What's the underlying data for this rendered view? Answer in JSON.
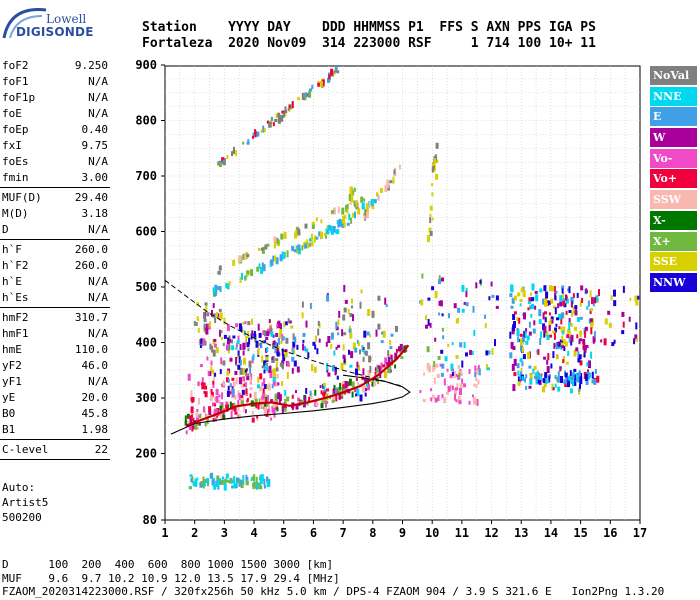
{
  "logo": {
    "line1": "Lowell",
    "line2": "DIGISONDE"
  },
  "header": {
    "line1": "Station    YYYY DAY    DDD HHMMSS P1  FFS S AXN PPS IGA PS",
    "line2": "Fortaleza  2020 Nov09  314 223000 RSF     1 714 100 10+ 11"
  },
  "parameters": [
    [
      {
        "label": "foF2",
        "value": "9.250"
      },
      {
        "label": "foF1",
        "value": "N/A"
      },
      {
        "label": "foF1p",
        "value": "N/A"
      },
      {
        "label": "foE",
        "value": "N/A"
      },
      {
        "label": "foEp",
        "value": "0.40"
      },
      {
        "label": "fxI",
        "value": "9.75"
      },
      {
        "label": "foEs",
        "value": "N/A"
      },
      {
        "label": "fmin",
        "value": "3.00"
      }
    ],
    [
      {
        "label": "MUF(D)",
        "value": "29.40"
      },
      {
        "label": "M(D)",
        "value": "3.18"
      },
      {
        "label": "D",
        "value": "N/A"
      }
    ],
    [
      {
        "label": "h`F",
        "value": "260.0"
      },
      {
        "label": "h`F2",
        "value": "260.0"
      },
      {
        "label": "h`E",
        "value": "N/A"
      },
      {
        "label": "h`Es",
        "value": "N/A"
      }
    ],
    [
      {
        "label": "hmF2",
        "value": "310.7"
      },
      {
        "label": "hmF1",
        "value": "N/A"
      },
      {
        "label": "hmE",
        "value": "110.0"
      },
      {
        "label": "yF2",
        "value": "46.0"
      },
      {
        "label": "yF1",
        "value": "N/A"
      },
      {
        "label": "yE",
        "value": "20.0"
      },
      {
        "label": "B0",
        "value": "45.8"
      },
      {
        "label": "B1",
        "value": "1.98"
      }
    ],
    [
      {
        "label": "C-level",
        "value": "22"
      }
    ]
  ],
  "autoscaling": {
    "line1": "Auto:",
    "line2": "Artist5",
    "line3": "500200"
  },
  "footer": {
    "line1": "D      100  200  400  600  800 1000 1500 3000 [km]",
    "line2": "MUF    9.6  9.7 10.2 10.9 12.0 13.5 17.9 29.4 [MHz]",
    "line3": "FZAOM_2020314223000.RSF / 320fx256h 50 kHz 5.0 km / DPS-4 FZAOM 904 / 3.9 S 321.6 E   Ion2Png 1.3.20"
  },
  "legend": [
    {
      "label": "NoVal",
      "color": "#7f7f7f"
    },
    {
      "label": "NNE",
      "color": "#00d8f0"
    },
    {
      "label": "E",
      "color": "#3fa0e8"
    },
    {
      "label": "W",
      "color": "#a8009a"
    },
    {
      "label": "Vo-",
      "color": "#f04ac8"
    },
    {
      "label": "Vo+",
      "color": "#f0003c"
    },
    {
      "label": "SSW",
      "color": "#f8b8b0"
    },
    {
      "label": "X-",
      "color": "#007800"
    },
    {
      "label": "X+",
      "color": "#70b840"
    },
    {
      "label": "SSE",
      "color": "#d8d000"
    },
    {
      "label": "NNW",
      "color": "#1800d8"
    }
  ],
  "chart_data": {
    "type": "scatter",
    "x_ticks": [
      "1",
      "2",
      "3",
      "4",
      "5",
      "6",
      "7",
      "8",
      "9",
      "10",
      "11",
      "12",
      "13",
      "14",
      "15",
      "16",
      "17"
    ],
    "y_ticks": [
      "80",
      "200",
      "300",
      "400",
      "500",
      "600",
      "700",
      "800",
      "900"
    ],
    "xlim": [
      1,
      17
    ],
    "ylim": [
      80,
      900
    ],
    "grid": true,
    "trace": [
      {
        "x": 1.7,
        "y": 250
      },
      {
        "x": 2.2,
        "y": 260
      },
      {
        "x": 2.8,
        "y": 272
      },
      {
        "x": 3.4,
        "y": 285
      },
      {
        "x": 4.0,
        "y": 290
      },
      {
        "x": 4.6,
        "y": 292
      },
      {
        "x": 5.2,
        "y": 286
      },
      {
        "x": 5.8,
        "y": 292
      },
      {
        "x": 6.4,
        "y": 300
      },
      {
        "x": 7.0,
        "y": 310
      },
      {
        "x": 7.6,
        "y": 322
      },
      {
        "x": 8.2,
        "y": 342
      },
      {
        "x": 8.8,
        "y": 370
      },
      {
        "x": 9.2,
        "y": 395
      }
    ],
    "profile": [
      {
        "x": 1.2,
        "y": 235
      },
      {
        "x": 2.0,
        "y": 254
      },
      {
        "x": 3.0,
        "y": 262
      },
      {
        "x": 4.0,
        "y": 268
      },
      {
        "x": 5.0,
        "y": 272
      },
      {
        "x": 6.0,
        "y": 277
      },
      {
        "x": 7.0,
        "y": 283
      },
      {
        "x": 8.0,
        "y": 290
      },
      {
        "x": 8.6,
        "y": 296
      },
      {
        "x": 9.0,
        "y": 302
      },
      {
        "x": 9.25,
        "y": 310.7
      },
      {
        "x": 9.0,
        "y": 320
      },
      {
        "x": 8.4,
        "y": 330
      },
      {
        "x": 7.6,
        "y": 337
      },
      {
        "x": 7.0,
        "y": 341
      }
    ],
    "topside": [
      {
        "x": 1.0,
        "y": 512
      },
      {
        "x": 1.7,
        "y": 484
      },
      {
        "x": 2.4,
        "y": 456
      },
      {
        "x": 3.2,
        "y": 430
      },
      {
        "x": 4.0,
        "y": 408
      },
      {
        "x": 5.0,
        "y": 385
      },
      {
        "x": 6.0,
        "y": 367
      },
      {
        "x": 7.0,
        "y": 350
      },
      {
        "x": 8.0,
        "y": 336
      },
      {
        "x": 9.0,
        "y": 321
      }
    ],
    "echo_clusters": [
      {
        "x0": 1.7,
        "x1": 9.2,
        "y0": 250,
        "y1": 400,
        "n": 220,
        "colors": [
          "#f0003c",
          "#007800",
          "#f04ac8",
          "#70b840",
          "#a8009a",
          "#f8b8b0"
        ],
        "curve": true
      },
      {
        "x0": 1.8,
        "x1": 4.8,
        "y0": 260,
        "y1": 340,
        "n": 110,
        "colors": [
          "#f8b8b0",
          "#f0003c",
          "#f04ac8"
        ]
      },
      {
        "x0": 2.2,
        "x1": 5.4,
        "y0": 340,
        "y1": 440,
        "n": 150,
        "colors": [
          "#a8009a",
          "#f04ac8",
          "#1800d8",
          "#7f7f7f",
          "#d8d000"
        ]
      },
      {
        "x0": 2.0,
        "x1": 3.0,
        "y0": 420,
        "y1": 470,
        "n": 25,
        "colors": [
          "#a8009a",
          "#7f7f7f",
          "#d8d000"
        ]
      },
      {
        "x0": 3.0,
        "x1": 8.0,
        "y0": 300,
        "y1": 420,
        "n": 120,
        "colors": [
          "#a8009a",
          "#3fa0e8",
          "#00d8f0",
          "#1800d8",
          "#d8d000"
        ]
      },
      {
        "x0": 5.6,
        "x1": 8.8,
        "y0": 340,
        "y1": 500,
        "n": 70,
        "colors": [
          "#d8d000",
          "#a8009a",
          "#3fa0e8",
          "#7f7f7f"
        ]
      },
      {
        "x0": 9.6,
        "x1": 11.6,
        "y0": 290,
        "y1": 360,
        "n": 60,
        "colors": [
          "#f8b8b0",
          "#f04ac8"
        ]
      },
      {
        "x0": 9.6,
        "x1": 12.2,
        "y0": 340,
        "y1": 520,
        "n": 70,
        "colors": [
          "#d8d000",
          "#a8009a",
          "#1800d8",
          "#3fa0e8",
          "#70b840",
          "#00d8f0"
        ]
      },
      {
        "x0": 12.6,
        "x1": 15.6,
        "y0": 310,
        "y1": 500,
        "n": 260,
        "colors": [
          "#1800d8",
          "#a8009a",
          "#3fa0e8",
          "#f0003c",
          "#d8d000",
          "#00d8f0"
        ]
      },
      {
        "x0": 13.8,
        "x1": 17.0,
        "y0": 390,
        "y1": 500,
        "n": 60,
        "colors": [
          "#a8009a",
          "#f0003c",
          "#1800d8",
          "#d8d000"
        ]
      },
      {
        "x0": 12.9,
        "x1": 15.5,
        "y0": 325,
        "y1": 345,
        "n": 60,
        "colors": [
          "#3fa0e8",
          "#00d8f0",
          "#1800d8"
        ]
      },
      {
        "x0": 1.8,
        "x1": 4.6,
        "y0": 138,
        "y1": 160,
        "n": 90,
        "colors": [
          "#3fa0e8",
          "#00d8f0",
          "#70b840"
        ]
      }
    ],
    "echo_lines": [
      {
        "x0": 2.8,
        "y0": 720,
        "x1": 6.8,
        "y1": 890,
        "n": 80,
        "colors": [
          "#d8d000",
          "#3fa0e8",
          "#70b840",
          "#7f7f7f",
          "#f0003c"
        ]
      },
      {
        "x0": 2.6,
        "y0": 490,
        "x1": 7.4,
        "y1": 620,
        "n": 70,
        "colors": [
          "#3fa0e8",
          "#d8d000",
          "#00d8f0",
          "#70b840"
        ]
      },
      {
        "x0": 2.8,
        "y0": 530,
        "x1": 7.8,
        "y1": 660,
        "n": 50,
        "colors": [
          "#d8d000",
          "#f8b8b0",
          "#70b840",
          "#7f7f7f"
        ]
      },
      {
        "x0": 5.8,
        "y0": 580,
        "x1": 8.2,
        "y1": 660,
        "n": 40,
        "colors": [
          "#3fa0e8",
          "#00d8f0",
          "#d8d000"
        ]
      },
      {
        "x0": 7.6,
        "y0": 620,
        "x1": 9.0,
        "y1": 720,
        "n": 25,
        "colors": [
          "#d8d000",
          "#f8b8b0",
          "#7f7f7f"
        ]
      },
      {
        "x0": 9.9,
        "y0": 580,
        "x1": 10.2,
        "y1": 780,
        "n": 20,
        "colors": [
          "#d8d000",
          "#7f7f7f"
        ]
      },
      {
        "x0": 7.0,
        "y0": 600,
        "x1": 7.4,
        "y1": 690,
        "n": 12,
        "colors": [
          "#d8d000",
          "#70b840"
        ]
      }
    ]
  }
}
